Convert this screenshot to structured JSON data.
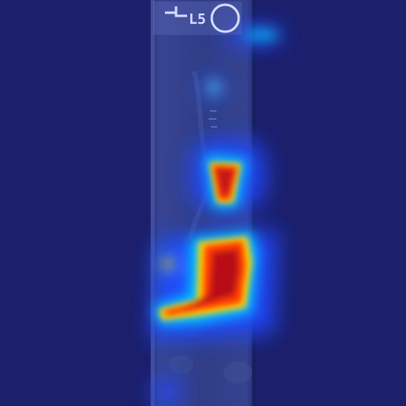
{
  "image": {
    "description_kind": "saliency-heatmap-overlay",
    "marker_text": "L5",
    "colors": {
      "background": "#1c1f6b",
      "strip_dark": "#222a73",
      "strip_light": "#3b4a94",
      "heat_low": "#1f49ff",
      "heat_mid": "#00c8ff",
      "heat_warm": "#ffd200",
      "heat_hot": "#ff3a00",
      "heat_peak": "#b80f12",
      "marker_ink": "#d6dcff"
    },
    "icons": [
      "orientation-marker-icon",
      "circle-marker-icon"
    ]
  }
}
